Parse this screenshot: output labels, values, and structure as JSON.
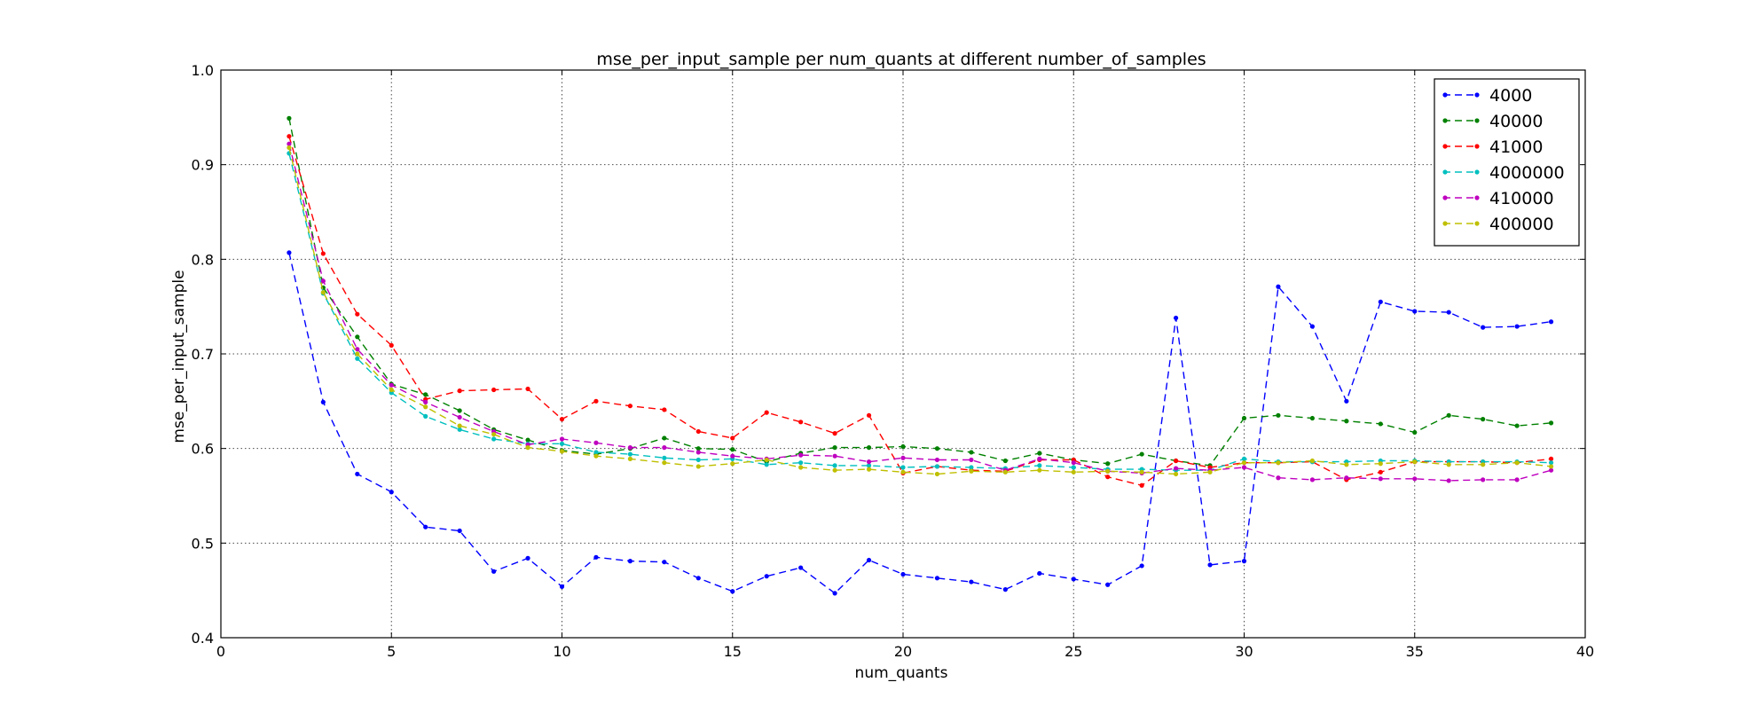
{
  "chart_data": {
    "type": "line",
    "title": "mse_per_input_sample per num_quants at different number_of_samples",
    "xlabel": "num_quants",
    "ylabel": "mse_per_input_sample",
    "xlim": [
      0,
      40
    ],
    "ylim": [
      0.4,
      1.0
    ],
    "xticks": [
      "0",
      "5",
      "10",
      "15",
      "20",
      "25",
      "30",
      "35",
      "40"
    ],
    "yticks": [
      "0.4",
      "0.5",
      "0.6",
      "0.7",
      "0.8",
      "0.9",
      "1.0"
    ],
    "grid": true,
    "legend_position": "top-right",
    "x": [
      2,
      3,
      4,
      5,
      6,
      7,
      8,
      9,
      10,
      11,
      12,
      13,
      14,
      15,
      16,
      17,
      18,
      19,
      20,
      21,
      22,
      23,
      24,
      25,
      26,
      27,
      28,
      29,
      30,
      31,
      32,
      33,
      34,
      35,
      36,
      37,
      38,
      39
    ],
    "series": [
      {
        "name": "4000",
        "color": "#0000ff",
        "values": [
          0.807,
          0.649,
          0.573,
          0.554,
          0.517,
          0.513,
          0.47,
          0.484,
          0.454,
          0.485,
          0.481,
          0.48,
          0.463,
          0.449,
          0.465,
          0.474,
          0.447,
          0.482,
          0.467,
          0.463,
          0.459,
          0.451,
          0.468,
          0.462,
          0.456,
          0.476,
          0.738,
          0.477,
          0.481,
          0.771,
          0.729,
          0.65,
          0.755,
          0.745,
          0.744,
          0.728,
          0.729,
          0.734
        ]
      },
      {
        "name": "40000",
        "color": "#008000",
        "values": [
          0.949,
          0.77,
          0.718,
          0.668,
          0.657,
          0.64,
          0.62,
          0.609,
          0.598,
          0.594,
          0.6,
          0.611,
          0.6,
          0.599,
          0.586,
          0.595,
          0.601,
          0.601,
          0.602,
          0.6,
          0.596,
          0.587,
          0.595,
          0.588,
          0.584,
          0.594,
          0.587,
          0.582,
          0.632,
          0.635,
          0.632,
          0.629,
          0.626,
          0.617,
          0.635,
          0.631,
          0.624,
          0.627
        ]
      },
      {
        "name": "41000",
        "color": "#ff0000",
        "values": [
          0.93,
          0.806,
          0.742,
          0.709,
          0.652,
          0.661,
          0.662,
          0.663,
          0.631,
          0.65,
          0.645,
          0.641,
          0.618,
          0.611,
          0.638,
          0.628,
          0.616,
          0.635,
          0.574,
          0.581,
          0.577,
          0.576,
          0.588,
          0.588,
          0.57,
          0.561,
          0.587,
          0.58,
          0.585,
          0.585,
          0.586,
          0.567,
          0.575,
          0.586,
          0.586,
          0.586,
          0.585,
          0.589
        ]
      },
      {
        "name": "4000000",
        "color": "#00bfbf",
        "values": [
          0.912,
          0.764,
          0.695,
          0.659,
          0.634,
          0.62,
          0.61,
          0.605,
          0.605,
          0.596,
          0.594,
          0.59,
          0.588,
          0.589,
          0.583,
          0.585,
          0.582,
          0.582,
          0.58,
          0.581,
          0.58,
          0.579,
          0.582,
          0.58,
          0.578,
          0.578,
          0.577,
          0.577,
          0.589,
          0.586,
          0.586,
          0.586,
          0.587,
          0.587,
          0.586,
          0.586,
          0.586,
          0.585
        ]
      },
      {
        "name": "410000",
        "color": "#bf00bf",
        "values": [
          0.922,
          0.777,
          0.705,
          0.667,
          0.649,
          0.633,
          0.618,
          0.604,
          0.61,
          0.606,
          0.601,
          0.601,
          0.596,
          0.592,
          0.589,
          0.593,
          0.592,
          0.586,
          0.59,
          0.588,
          0.588,
          0.577,
          0.589,
          0.585,
          0.576,
          0.574,
          0.579,
          0.577,
          0.58,
          0.569,
          0.567,
          0.569,
          0.568,
          0.568,
          0.566,
          0.567,
          0.567,
          0.577
        ]
      },
      {
        "name": "400000",
        "color": "#bfbf00",
        "values": [
          0.918,
          0.765,
          0.7,
          0.662,
          0.644,
          0.624,
          0.615,
          0.601,
          0.597,
          0.592,
          0.589,
          0.585,
          0.581,
          0.584,
          0.588,
          0.58,
          0.577,
          0.578,
          0.575,
          0.573,
          0.576,
          0.575,
          0.577,
          0.575,
          0.576,
          0.575,
          0.573,
          0.575,
          0.585,
          0.585,
          0.587,
          0.583,
          0.584,
          0.586,
          0.583,
          0.583,
          0.585,
          0.581
        ]
      }
    ]
  }
}
